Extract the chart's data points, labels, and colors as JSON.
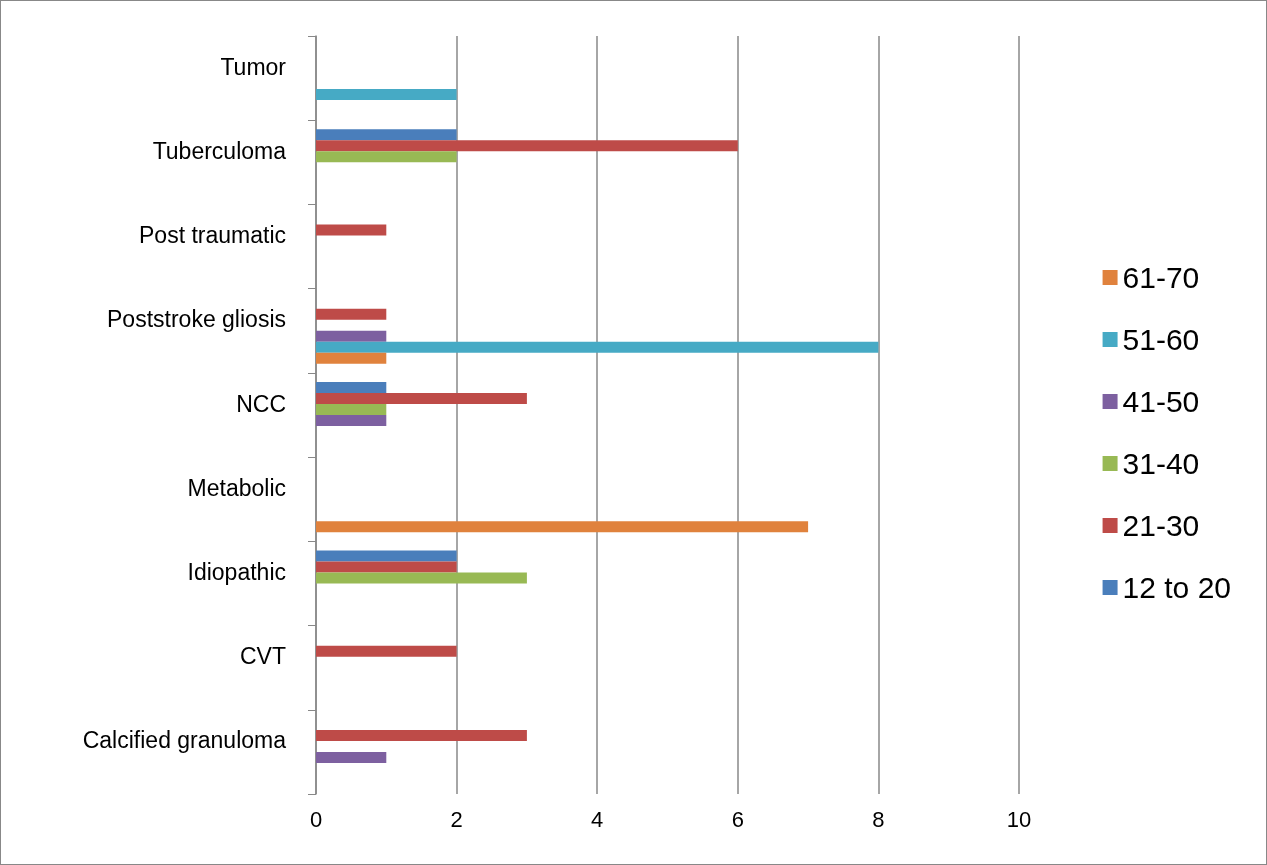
{
  "chart_data": {
    "type": "bar",
    "orientation": "horizontal",
    "categories": [
      "Tumor",
      "Tuberculoma",
      "Post traumatic",
      "Poststroke gliosis",
      "NCC",
      "Metabolic",
      "Idiopathic",
      "CVT",
      "Calcified granuloma"
    ],
    "series": [
      {
        "name": "12 to 20",
        "color": "#4a7ebb",
        "values": [
          null,
          2,
          null,
          null,
          1,
          null,
          2,
          null,
          null
        ]
      },
      {
        "name": "21-30",
        "color": "#be4b48",
        "values": [
          null,
          6,
          1,
          1,
          3,
          null,
          2,
          2,
          3
        ]
      },
      {
        "name": "31-40",
        "color": "#98b954",
        "values": [
          null,
          2,
          null,
          null,
          1,
          null,
          3,
          null,
          null
        ]
      },
      {
        "name": "41-50",
        "color": "#7d60a0",
        "values": [
          null,
          null,
          null,
          1,
          1,
          null,
          null,
          null,
          1
        ]
      },
      {
        "name": "51-60",
        "color": "#46aac5",
        "values": [
          2,
          null,
          null,
          8,
          null,
          null,
          null,
          null,
          null
        ]
      },
      {
        "name": "61-70",
        "color": "#e0823d",
        "values": [
          null,
          null,
          null,
          1,
          null,
          7,
          null,
          null,
          null
        ]
      }
    ],
    "xlim": [
      0,
      10
    ],
    "xticks": [
      0,
      2,
      4,
      6,
      8,
      10
    ],
    "grid": "x",
    "legend": "right"
  }
}
